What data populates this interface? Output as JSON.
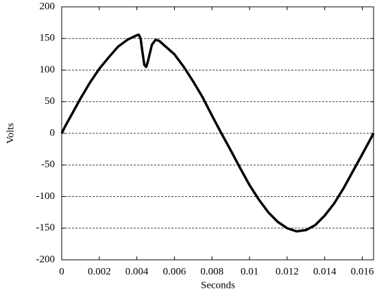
{
  "chart_data": {
    "type": "line",
    "x_label": "Seconds",
    "y_label": "Volts",
    "x": [
      0,
      0.0002,
      0.0005,
      0.001,
      0.0015,
      0.002,
      0.0025,
      0.003,
      0.0035,
      0.004,
      0.0041,
      0.0042,
      0.0043,
      0.0044,
      0.0045,
      0.0046,
      0.0048,
      0.005,
      0.0052,
      0.0055,
      0.006,
      0.0065,
      0.007,
      0.0075,
      0.008,
      0.0085,
      0.009,
      0.0095,
      0.01,
      0.0105,
      0.011,
      0.0115,
      0.012,
      0.0125,
      0.013,
      0.0135,
      0.014,
      0.0145,
      0.015,
      0.0155,
      0.016,
      0.0166
    ],
    "series": [
      {
        "color": "#000000",
        "values": [
          0,
          12,
          28,
          55,
          80,
          102,
          120,
          137,
          148,
          155,
          156,
          150,
          128,
          108,
          105,
          115,
          140,
          148,
          146,
          138,
          125,
          105,
          82,
          57,
          28,
          0,
          -27,
          -55,
          -82,
          -105,
          -125,
          -140,
          -150,
          -155,
          -153,
          -145,
          -130,
          -111,
          -87,
          -60,
          -33,
          0
        ]
      }
    ],
    "xlim": [
      0,
      0.0166
    ],
    "xticks": [
      0,
      0.002,
      0.004,
      0.006,
      0.008,
      0.01,
      0.012,
      0.014,
      0.016
    ],
    "ylim": [
      -200,
      200
    ],
    "yticks": [
      -200,
      -150,
      -100,
      -50,
      0,
      50,
      100,
      150,
      200
    ],
    "grid": true
  }
}
